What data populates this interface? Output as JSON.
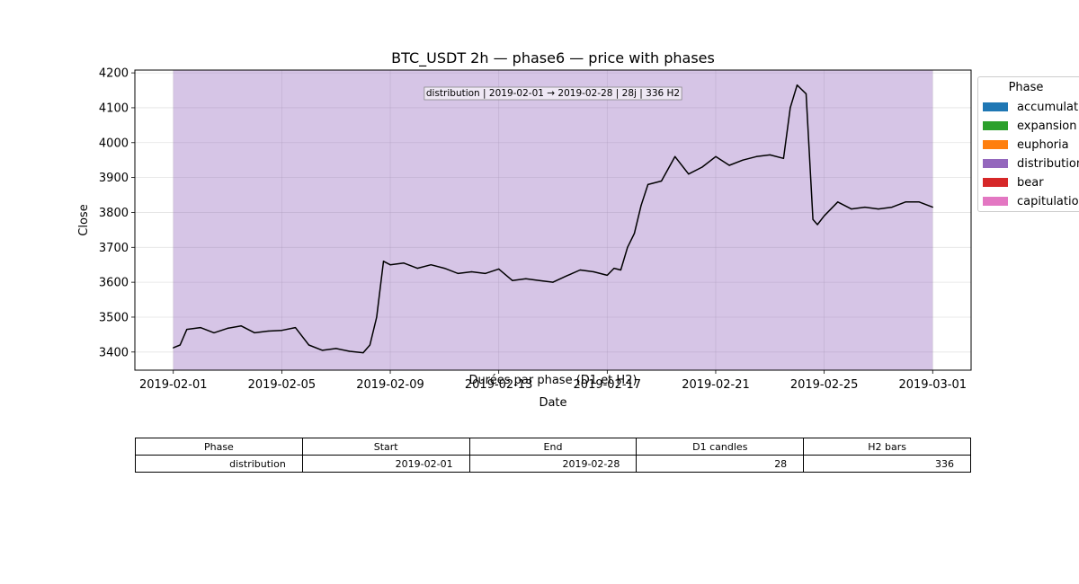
{
  "chart_data": {
    "type": "line",
    "title": "BTC_USDT 2h — phase6 — price with phases",
    "xlabel": "Date",
    "ylabel": "Close",
    "xlim": [
      "2019-01-30T14:00",
      "2019-03-02T10:00"
    ],
    "ylim": [
      3348,
      4208
    ],
    "xticks": [
      "2019-02-01",
      "2019-02-05",
      "2019-02-09",
      "2019-02-13",
      "2019-02-17",
      "2019-02-21",
      "2019-02-25",
      "2019-03-01"
    ],
    "yticks": [
      3400,
      3500,
      3600,
      3700,
      3800,
      3900,
      4000,
      4100,
      4200
    ],
    "grid": true,
    "phase_span": {
      "phase": "distribution",
      "start": "2019-02-01",
      "end": "2019-03-01",
      "color": "#9467bd",
      "annotation": "distribution | 2019-02-01 → 2019-02-28 | 28j | 336 H2"
    },
    "series": [
      {
        "color": "#000000",
        "x": [
          "2019-02-01T00:00",
          "2019-02-01T06:00",
          "2019-02-01T12:00",
          "2019-02-02T00:00",
          "2019-02-02T12:00",
          "2019-02-03T00:00",
          "2019-02-03T12:00",
          "2019-02-04T00:00",
          "2019-02-04T12:00",
          "2019-02-05T00:00",
          "2019-02-05T12:00",
          "2019-02-06T00:00",
          "2019-02-06T12:00",
          "2019-02-07T00:00",
          "2019-02-07T12:00",
          "2019-02-08T00:00",
          "2019-02-08T06:00",
          "2019-02-08T12:00",
          "2019-02-08T18:00",
          "2019-02-09T00:00",
          "2019-02-09T12:00",
          "2019-02-10T00:00",
          "2019-02-10T12:00",
          "2019-02-11T00:00",
          "2019-02-11T12:00",
          "2019-02-12T00:00",
          "2019-02-12T12:00",
          "2019-02-13T00:00",
          "2019-02-13T12:00",
          "2019-02-14T00:00",
          "2019-02-14T12:00",
          "2019-02-15T00:00",
          "2019-02-15T12:00",
          "2019-02-16T00:00",
          "2019-02-16T12:00",
          "2019-02-17T00:00",
          "2019-02-17T06:00",
          "2019-02-17T12:00",
          "2019-02-17T18:00",
          "2019-02-18T00:00",
          "2019-02-18T06:00",
          "2019-02-18T12:00",
          "2019-02-19T00:00",
          "2019-02-19T12:00",
          "2019-02-20T00:00",
          "2019-02-20T12:00",
          "2019-02-21T00:00",
          "2019-02-21T12:00",
          "2019-02-22T00:00",
          "2019-02-22T12:00",
          "2019-02-23T00:00",
          "2019-02-23T12:00",
          "2019-02-23T18:00",
          "2019-02-24T00:00",
          "2019-02-24T08:00",
          "2019-02-24T14:00",
          "2019-02-24T18:00",
          "2019-02-25T00:00",
          "2019-02-25T12:00",
          "2019-02-26T00:00",
          "2019-02-26T12:00",
          "2019-02-27T00:00",
          "2019-02-27T12:00",
          "2019-02-28T00:00",
          "2019-02-28T12:00",
          "2019-03-01T00:00"
        ],
        "values": [
          3412,
          3420,
          3465,
          3470,
          3455,
          3468,
          3475,
          3455,
          3460,
          3462,
          3470,
          3420,
          3405,
          3410,
          3402,
          3398,
          3420,
          3500,
          3660,
          3650,
          3655,
          3640,
          3650,
          3640,
          3625,
          3630,
          3625,
          3638,
          3605,
          3610,
          3605,
          3600,
          3618,
          3635,
          3630,
          3620,
          3640,
          3635,
          3700,
          3740,
          3820,
          3880,
          3890,
          3960,
          3910,
          3930,
          3960,
          3935,
          3950,
          3960,
          3965,
          3955,
          4100,
          4165,
          4140,
          3780,
          3765,
          3790,
          3830,
          3810,
          3815,
          3810,
          3815,
          3830,
          3830,
          3815
        ]
      }
    ],
    "legend": {
      "title": "Phase",
      "placement": "outside right",
      "entries": [
        {
          "label": "accumulation",
          "color": "#1f77b4"
        },
        {
          "label": "expansion",
          "color": "#2ca02c"
        },
        {
          "label": "euphoria",
          "color": "#ff7f0e"
        },
        {
          "label": "distribution",
          "color": "#9467bd"
        },
        {
          "label": "bear",
          "color": "#d62728"
        },
        {
          "label": "capitulation",
          "color": "#e377c2"
        }
      ]
    }
  },
  "table": {
    "title": "Durées par phase (D1 et H2)",
    "headers": [
      "Phase",
      "Start",
      "End",
      "D1 candles",
      "H2 bars"
    ],
    "rows": [
      [
        "distribution",
        "2019-02-01",
        "2019-02-28",
        "28",
        "336"
      ]
    ]
  }
}
